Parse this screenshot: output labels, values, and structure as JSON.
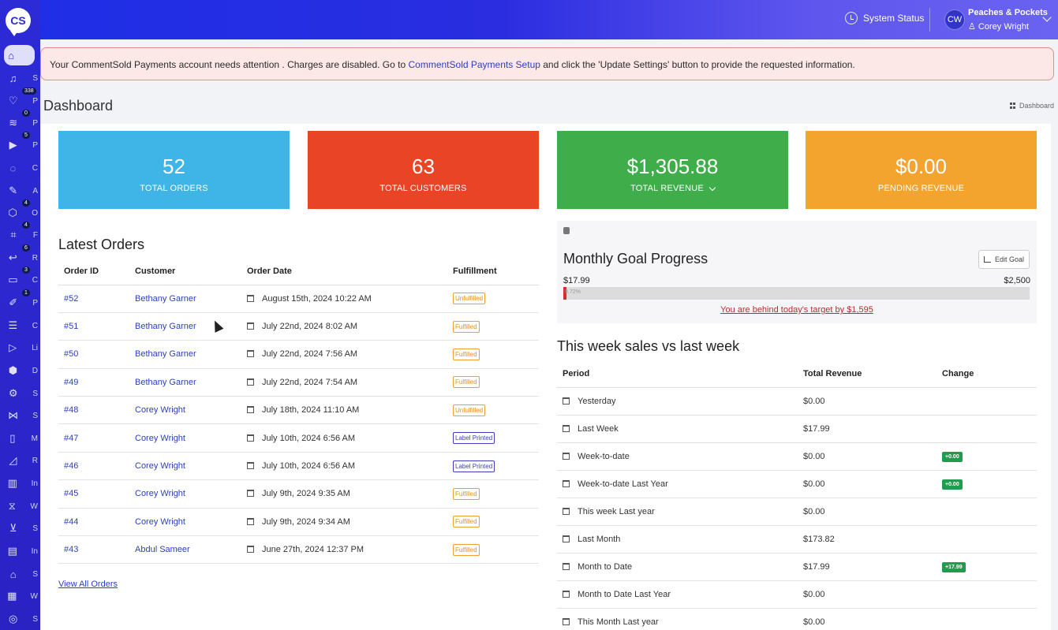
{
  "app": {
    "logo_text": "CS"
  },
  "sidebar": {
    "items": [
      {
        "icon": "⌂",
        "name": "home-icon",
        "label": "",
        "badge": "",
        "active": true
      },
      {
        "icon": "♫",
        "name": "headset-icon",
        "label": "S",
        "badge": ""
      },
      {
        "icon": "♡",
        "name": "tag-icon",
        "label": "P",
        "badge": "338"
      },
      {
        "icon": "≋",
        "name": "feed-icon",
        "label": "P",
        "badge": "0"
      },
      {
        "icon": "▶",
        "name": "play-icon",
        "label": "P",
        "badge": "5"
      },
      {
        "icon": "◌",
        "name": "chat-icon",
        "label": "C",
        "badge": ""
      },
      {
        "icon": "✎",
        "name": "tools-icon",
        "label": "A",
        "badge": ""
      },
      {
        "icon": "⬡",
        "name": "box-icon",
        "label": "O",
        "badge": "4"
      },
      {
        "icon": "⌗",
        "name": "scan-icon",
        "label": "F",
        "badge": "4"
      },
      {
        "icon": "↩",
        "name": "return-icon",
        "label": "R",
        "badge": "6"
      },
      {
        "icon": "▭",
        "name": "ticket-icon",
        "label": "C",
        "badge": "3"
      },
      {
        "icon": "✐",
        "name": "pen-icon",
        "label": "P",
        "badge": "1"
      },
      {
        "icon": "☰",
        "name": "users-icon",
        "label": "C",
        "badge": ""
      },
      {
        "icon": "▷",
        "name": "live-icon",
        "label": "Li",
        "badge": ""
      },
      {
        "icon": "⬢",
        "name": "cube-icon",
        "label": "D",
        "badge": ""
      },
      {
        "icon": "⚙",
        "name": "gear-icon",
        "label": "S",
        "badge": ""
      },
      {
        "icon": "⋈",
        "name": "share-icon",
        "label": "S",
        "badge": ""
      },
      {
        "icon": "▯",
        "name": "mobile-icon",
        "label": "M",
        "badge": ""
      },
      {
        "icon": "◿",
        "name": "reports-icon",
        "label": "R",
        "badge": ""
      },
      {
        "icon": "▥",
        "name": "bar-chart-icon",
        "label": "In",
        "badge": ""
      },
      {
        "icon": "⧖",
        "name": "hourglass-icon",
        "label": "W",
        "badge": ""
      },
      {
        "icon": "⊻",
        "name": "cart-icon",
        "label": "S",
        "badge": ""
      },
      {
        "icon": "▤",
        "name": "invoice-icon",
        "label": "In",
        "badge": ""
      },
      {
        "icon": "⌂",
        "name": "store-icon",
        "label": "S",
        "badge": ""
      },
      {
        "icon": "▦",
        "name": "web-icon",
        "label": "W",
        "badge": ""
      },
      {
        "icon": "◎",
        "name": "support-icon",
        "label": "S",
        "badge": ""
      }
    ]
  },
  "topbar": {
    "system_status": "System Status",
    "avatar_initials": "CW",
    "shop_name": "Peaches & Pockets",
    "user_name": "Corey Wright"
  },
  "alert": {
    "text_before": "Your CommentSold Payments account needs attention . Charges are disabled. Go to ",
    "link": "CommentSold Payments Setup",
    "text_after": " and click the 'Update Settings' button to provide the requested information."
  },
  "page": {
    "title": "Dashboard",
    "breadcrumb": "Dashboard"
  },
  "stats": [
    {
      "value": "52",
      "label": "TOTAL ORDERS",
      "color": "#3fb4e6"
    },
    {
      "value": "63",
      "label": "TOTAL CUSTOMERS",
      "color": "#ea4426"
    },
    {
      "value": "$1,305.88",
      "label": "TOTAL REVENUE",
      "color": "#3ead4a"
    },
    {
      "value": "$0.00",
      "label": "PENDING REVENUE",
      "color": "#f2a42e"
    }
  ],
  "latest_orders": {
    "title": "Latest Orders",
    "columns": [
      "Order ID",
      "Customer",
      "Order Date",
      "Fulfillment"
    ],
    "rows": [
      {
        "id": "#52",
        "customer": "Bethany Garner",
        "date": "August 15th, 2024 10:22 AM",
        "status": "Unfulfilled"
      },
      {
        "id": "#51",
        "customer": "Bethany Garner",
        "date": "July 22nd, 2024 8:02 AM",
        "status": "Fulfilled"
      },
      {
        "id": "#50",
        "customer": "Bethany Garner",
        "date": "July 22nd, 2024 7:56 AM",
        "status": "Fulfilled"
      },
      {
        "id": "#49",
        "customer": "Bethany Garner",
        "date": "July 22nd, 2024 7:54 AM",
        "status": "Fulfilled"
      },
      {
        "id": "#48",
        "customer": "Corey Wright",
        "date": "July 18th, 2024 11:10 AM",
        "status": "Unfulfilled"
      },
      {
        "id": "#47",
        "customer": "Corey Wright",
        "date": "July 10th, 2024 6:56 AM",
        "status": "Label Printed"
      },
      {
        "id": "#46",
        "customer": "Corey Wright",
        "date": "July 10th, 2024 6:56 AM",
        "status": "Label Printed"
      },
      {
        "id": "#45",
        "customer": "Corey Wright",
        "date": "July 9th, 2024 9:35 AM",
        "status": "Fulfilled"
      },
      {
        "id": "#44",
        "customer": "Corey Wright",
        "date": "July 9th, 2024 9:34 AM",
        "status": "Fulfilled"
      },
      {
        "id": "#43",
        "customer": "Abdul Sameer",
        "date": "June 27th, 2024 12:37 PM",
        "status": "Fulfilled"
      }
    ],
    "view_all": "View All Orders"
  },
  "goal": {
    "title": "Monthly Goal Progress",
    "edit_label": "Edit Goal",
    "current": "$17.99",
    "target": "$2,500",
    "progress_fraction": 0.0072,
    "progress_label": "0.72%",
    "behind_text": "You are behind today's target by $1,595"
  },
  "weekly": {
    "title": "This week sales vs last week",
    "columns": [
      "Period",
      "Total Revenue",
      "Change"
    ],
    "rows": [
      {
        "period": "Yesterday",
        "revenue": "$0.00",
        "change": ""
      },
      {
        "period": "Last Week",
        "revenue": "$17.99",
        "change": ""
      },
      {
        "period": "Week-to-date",
        "revenue": "$0.00",
        "change": "+0.00"
      },
      {
        "period": "Week-to-date Last Year",
        "revenue": "$0.00",
        "change": "+0.00"
      },
      {
        "period": "This week Last year",
        "revenue": "$0.00",
        "change": ""
      },
      {
        "period": "Last Month",
        "revenue": "$173.82",
        "change": ""
      },
      {
        "period": "Month to Date",
        "revenue": "$17.99",
        "change": "+17.99"
      },
      {
        "period": "Month to Date Last Year",
        "revenue": "$0.00",
        "change": ""
      },
      {
        "period": "This Month Last year",
        "revenue": "$0.00",
        "change": ""
      }
    ]
  }
}
